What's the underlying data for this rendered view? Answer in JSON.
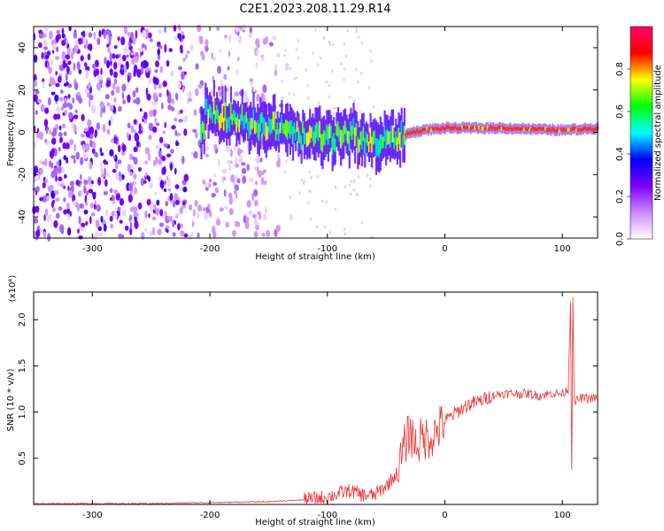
{
  "title": "C2E1.2023.208.11.29.R14",
  "chart_data": [
    {
      "type": "heatmap",
      "xlabel": "Height of straight line (km)",
      "ylabel": "Frequency (Hz)",
      "xlim": [
        -350,
        130
      ],
      "ylim": [
        -50,
        50
      ],
      "xticks": [
        -300,
        -200,
        -100,
        0,
        100
      ],
      "yticks": [
        -40,
        -20,
        0,
        20,
        40
      ],
      "colorbar": {
        "label": "Normalized spectral amplitude",
        "range": [
          0.0,
          1.0
        ],
        "ticks": [
          "0.0",
          "0.2",
          "0.4",
          "0.6",
          "0.8"
        ],
        "colors": [
          "#ffffff",
          "#cc88ff",
          "#7a00ff",
          "#0000ff",
          "#00ffff",
          "#00ff00",
          "#ffff00",
          "#ff0000",
          "#ff0066"
        ]
      },
      "band_center_hz": [
        [
          -205,
          10
        ],
        [
          -180,
          6
        ],
        [
          -150,
          3
        ],
        [
          -130,
          -1
        ],
        [
          -110,
          -2
        ],
        [
          -95,
          -3
        ],
        [
          -80,
          0
        ],
        [
          -70,
          -4
        ],
        [
          -55,
          -5
        ],
        [
          -45,
          -3
        ],
        [
          -35,
          -1
        ],
        [
          -20,
          1
        ],
        [
          0,
          2
        ],
        [
          50,
          2
        ],
        [
          100,
          1
        ],
        [
          130,
          2
        ]
      ],
      "noise_floor_extent_km": [
        -350,
        -140
      ]
    },
    {
      "type": "line",
      "xlabel": "Height of straight line (km)",
      "ylabel": "SNR (10 * v/v)",
      "yscale_label": "(x10⁴)",
      "xlim": [
        -350,
        130
      ],
      "ylim": [
        0,
        2.3
      ],
      "xticks": [
        -300,
        -200,
        -100,
        0,
        100
      ],
      "yticks": [
        "0.5",
        "1.0",
        "1.5",
        "2.0"
      ],
      "color": "#ee3333",
      "series": [
        {
          "x": [
            -350,
            -300,
            -250,
            -200,
            -150,
            -120,
            -100,
            -90,
            -80,
            -70,
            -60,
            -50,
            -40,
            -35,
            -30,
            -25,
            -20,
            -10,
            0,
            10,
            20,
            30,
            40,
            50,
            60,
            70,
            80,
            90,
            100,
            105,
            107,
            108,
            109,
            110,
            115,
            120,
            130
          ],
          "y": [
            0.01,
            0.01,
            0.01,
            0.02,
            0.03,
            0.05,
            0.08,
            0.12,
            0.15,
            0.1,
            0.1,
            0.2,
            0.35,
            0.6,
            0.8,
            0.65,
            0.7,
            0.75,
            0.9,
            1.0,
            1.08,
            1.12,
            1.18,
            1.2,
            1.2,
            1.2,
            1.18,
            1.2,
            1.2,
            1.25,
            2.2,
            0.4,
            2.25,
            1.1,
            1.15,
            1.15,
            1.15
          ]
        }
      ]
    }
  ]
}
